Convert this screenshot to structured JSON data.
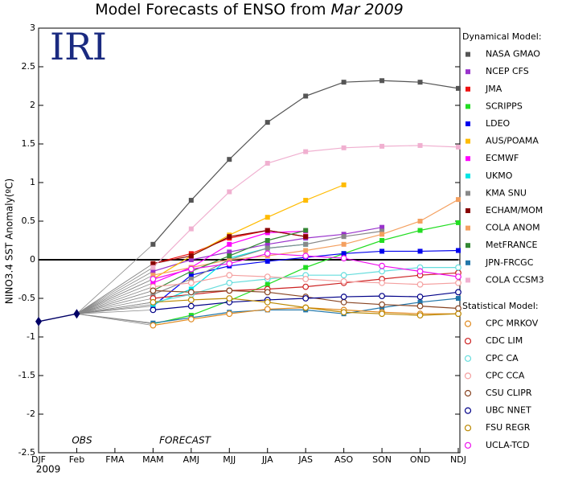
{
  "chart_data": {
    "type": "line",
    "title": "Model Forecasts of ENSO from",
    "title_date": "Mar 2009",
    "logo": "IRI",
    "y_label": "NINO3.4 SST Anomaly(ºC)",
    "year_label": "2009",
    "annotations": [
      "OBS",
      "FORECAST"
    ],
    "categories": [
      "DJF",
      "Feb",
      "FMA",
      "MAM",
      "AMJ",
      "MJJ",
      "JJA",
      "JAS",
      "ASO",
      "SON",
      "OND",
      "NDJ"
    ],
    "ylim": [
      -2.5,
      3
    ],
    "yticks": [
      -2.5,
      -2,
      -1.5,
      -1,
      -0.5,
      0,
      0.5,
      1,
      1.5,
      2,
      2.5,
      3
    ],
    "reference_line": 0,
    "observed": {
      "color": "#000066",
      "values": [
        -0.8,
        -0.7,
        null,
        null,
        null,
        null,
        null,
        null,
        null,
        null,
        null,
        null
      ]
    },
    "connector_color": "#888888",
    "groups": [
      {
        "title": "Dynamical Model:",
        "marker": "square",
        "series": [
          {
            "name": "NASA GMAO",
            "color": "#555555",
            "values": [
              null,
              null,
              null,
              0.2,
              0.77,
              1.3,
              1.78,
              2.12,
              2.3,
              2.32,
              2.3,
              2.22
            ]
          },
          {
            "name": "NCEP CFS",
            "color": "#9933cc",
            "values": [
              null,
              null,
              null,
              -0.15,
              0.0,
              0.1,
              0.2,
              0.28,
              0.33,
              0.42,
              null,
              null
            ]
          },
          {
            "name": "JMA",
            "color": "#ee1111",
            "values": [
              null,
              null,
              null,
              -0.05,
              0.08,
              0.28,
              0.38,
              0.3,
              null,
              null,
              null,
              null
            ]
          },
          {
            "name": "SCRIPPS",
            "color": "#22dd22",
            "values": [
              null,
              null,
              null,
              -0.83,
              -0.72,
              -0.53,
              -0.32,
              -0.1,
              0.08,
              0.25,
              0.38,
              0.48
            ]
          },
          {
            "name": "LDEO",
            "color": "#0000ee",
            "values": [
              null,
              null,
              null,
              -0.6,
              -0.2,
              -0.08,
              -0.02,
              0.03,
              0.08,
              0.11,
              0.11,
              0.12
            ]
          },
          {
            "name": "AUS/POAMA",
            "color": "#ffbb00",
            "values": [
              null,
              null,
              null,
              -0.25,
              0.05,
              0.32,
              0.55,
              0.77,
              0.97,
              null,
              null,
              null
            ]
          },
          {
            "name": "ECMWF",
            "color": "#ff00ff",
            "values": [
              null,
              null,
              null,
              -0.3,
              -0.1,
              0.2,
              0.35,
              0.37,
              null,
              null,
              null,
              null
            ]
          },
          {
            "name": "UKMO",
            "color": "#00e5e5",
            "values": [
              null,
              null,
              null,
              -0.58,
              -0.38,
              0.02,
              0.15,
              0.2,
              null,
              null,
              null,
              null
            ]
          },
          {
            "name": "KMA SNU",
            "color": "#888888",
            "values": [
              null,
              null,
              null,
              -0.45,
              -0.25,
              0.0,
              0.15,
              0.2,
              0.3,
              0.37,
              null,
              null
            ]
          },
          {
            "name": "ECHAM/MOM",
            "color": "#880000",
            "values": [
              null,
              null,
              null,
              -0.05,
              0.05,
              0.3,
              0.38,
              0.3,
              null,
              null,
              null,
              null
            ]
          },
          {
            "name": "COLA ANOM",
            "color": "#f4a060",
            "values": [
              null,
              null,
              null,
              -0.2,
              -0.1,
              0.0,
              0.05,
              0.12,
              0.2,
              0.33,
              0.5,
              0.78
            ]
          },
          {
            "name": "MetFRANCE",
            "color": "#338833",
            "values": [
              null,
              null,
              null,
              -0.4,
              -0.15,
              0.05,
              0.25,
              0.38,
              null,
              null,
              null,
              null
            ]
          },
          {
            "name": "JPN-FRCGC",
            "color": "#2277aa",
            "values": [
              null,
              null,
              null,
              -0.82,
              -0.75,
              -0.68,
              -0.65,
              -0.65,
              -0.7,
              -0.62,
              -0.55,
              -0.5
            ]
          },
          {
            "name": "COLA CCSM3",
            "color": "#f0b0d0",
            "values": [
              null,
              null,
              null,
              -0.1,
              0.4,
              0.88,
              1.25,
              1.4,
              1.45,
              1.47,
              1.48,
              1.46
            ]
          }
        ]
      },
      {
        "title": "Statistical Model:",
        "marker": "circle",
        "series": [
          {
            "name": "CPC MRKOV",
            "color": "#e08a20",
            "values": [
              null,
              null,
              null,
              -0.85,
              -0.77,
              -0.7,
              -0.64,
              -0.62,
              -0.65,
              -0.68,
              -0.7,
              -0.7
            ]
          },
          {
            "name": "CDC LIM",
            "color": "#cc2222",
            "values": [
              null,
              null,
              null,
              -0.5,
              -0.45,
              -0.4,
              -0.38,
              -0.35,
              -0.3,
              -0.25,
              -0.2,
              -0.17
            ]
          },
          {
            "name": "CPC CA",
            "color": "#66dddd",
            "values": [
              null,
              null,
              null,
              -0.55,
              -0.45,
              -0.3,
              -0.25,
              -0.2,
              -0.2,
              -0.15,
              -0.1,
              -0.1
            ]
          },
          {
            "name": "CPC CCA",
            "color": "#f4a0a0",
            "values": [
              null,
              null,
              null,
              -0.35,
              -0.3,
              -0.2,
              -0.22,
              -0.25,
              -0.28,
              -0.3,
              -0.32,
              -0.3
            ]
          },
          {
            "name": "CSU CLIPR",
            "color": "#884422",
            "values": [
              null,
              null,
              null,
              -0.4,
              -0.42,
              -0.4,
              -0.42,
              -0.48,
              -0.55,
              -0.58,
              -0.6,
              -0.63
            ]
          },
          {
            "name": "UBC NNET",
            "color": "#000088",
            "values": [
              null,
              null,
              null,
              -0.65,
              -0.6,
              -0.55,
              -0.52,
              -0.5,
              -0.48,
              -0.47,
              -0.48,
              -0.42
            ]
          },
          {
            "name": "FSU REGR",
            "color": "#bb8800",
            "values": [
              null,
              null,
              null,
              -0.55,
              -0.52,
              -0.5,
              -0.55,
              -0.62,
              -0.68,
              -0.7,
              -0.72,
              -0.7
            ]
          },
          {
            "name": "UCLA-TCD",
            "color": "#ee11ee",
            "values": [
              null,
              null,
              null,
              -0.25,
              -0.12,
              -0.05,
              0.08,
              0.05,
              0.02,
              -0.08,
              -0.15,
              -0.22
            ]
          }
        ]
      }
    ]
  }
}
